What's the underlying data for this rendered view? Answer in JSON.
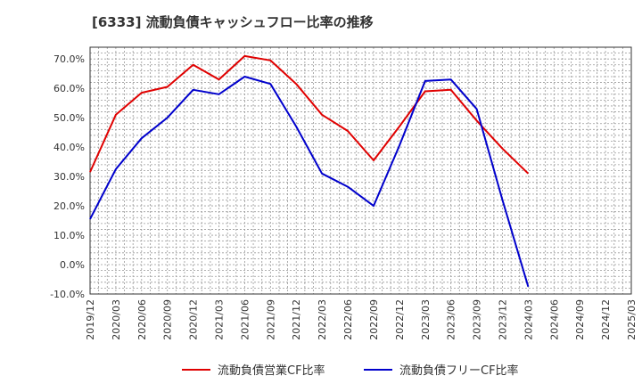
{
  "chart_data": {
    "type": "line",
    "title": "[6333]  流動負債キャッシュフロー比率の推移",
    "categories": [
      "2019/12",
      "2020/03",
      "2020/06",
      "2020/09",
      "2020/12",
      "2021/03",
      "2021/06",
      "2021/09",
      "2021/12",
      "2022/03",
      "2022/06",
      "2022/09",
      "2022/12",
      "2023/03",
      "2023/06",
      "2023/09",
      "2023/12",
      "2024/03",
      "2024/06",
      "2024/09",
      "2024/12",
      "2025/03"
    ],
    "yticks": [
      "-10.0%",
      "0.0%",
      "10.0%",
      "20.0%",
      "30.0%",
      "40.0%",
      "50.0%",
      "60.0%",
      "70.0%"
    ],
    "ylim": [
      -10,
      74
    ],
    "xlabel": "",
    "ylabel": "",
    "grid": true,
    "legend_position": "bottom",
    "series": [
      {
        "name": "流動負債営業CF比率",
        "color": "#e00000",
        "values": [
          31.5,
          51,
          58.5,
          60.5,
          68,
          63,
          71,
          69.5,
          61.5,
          51,
          45.5,
          35.5,
          47,
          59,
          59.5,
          49,
          39.5,
          31,
          null,
          null,
          null,
          null
        ]
      },
      {
        "name": "流動負債フリーCF比率",
        "color": "#0000cc",
        "values": [
          15.5,
          32.5,
          43,
          50,
          59.5,
          58,
          64,
          61.5,
          47,
          31,
          26.5,
          20,
          40.5,
          62.5,
          63,
          53,
          22,
          -7.5,
          null,
          null,
          null,
          null
        ]
      }
    ]
  }
}
